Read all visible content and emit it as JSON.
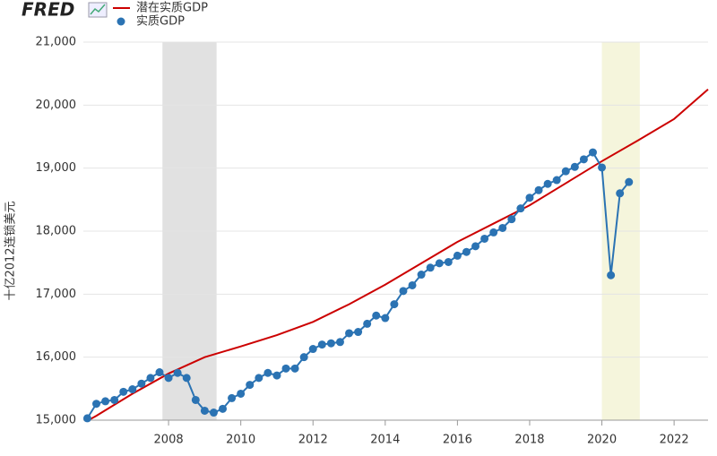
{
  "logo": "FRED",
  "chart_data": {
    "type": "line",
    "y_label": "十亿2012连锁美元",
    "xlim": [
      2005.64,
      2022.94
    ],
    "xticks": [
      2008,
      2010,
      2012,
      2014,
      2016,
      2018,
      2020,
      2022
    ],
    "ylim": [
      15000,
      21000
    ],
    "yticks": [
      {
        "value": 15000,
        "label": "15,000"
      },
      {
        "value": 16000,
        "label": "16,000"
      },
      {
        "value": 17000,
        "label": "17,000"
      },
      {
        "value": 18000,
        "label": "18,000"
      },
      {
        "value": 19000,
        "label": "19,000"
      },
      {
        "value": 20000,
        "label": "20,000"
      },
      {
        "value": 21000,
        "label": "21,000"
      }
    ],
    "grid": true,
    "shaded_ranges": [
      {
        "range": [
          2007.83,
          2009.33
        ],
        "color": "#e1e1e1"
      },
      {
        "range": [
          2020.0,
          2021.05
        ],
        "color": "#f5f5dc"
      }
    ],
    "series": [
      {
        "name": "潜在实质GDP",
        "color": "#cc0000",
        "markers": false,
        "x": [
          2005.75,
          2006,
          2007,
          2008,
          2009,
          2010,
          2011,
          2012,
          2013,
          2014,
          2015,
          2016,
          2017,
          2018,
          2019,
          2020,
          2021,
          2022,
          2022.94
        ],
        "values": [
          14990,
          15070,
          15420,
          15740,
          16000,
          16170,
          16350,
          16560,
          16840,
          17150,
          17490,
          17830,
          18120,
          18410,
          18760,
          19110,
          19440,
          19780,
          20250
        ]
      },
      {
        "name": "实质GDP",
        "color": "#2b73b3",
        "markers": true,
        "x": [
          2005.75,
          2006,
          2006.25,
          2006.5,
          2006.75,
          2007,
          2007.25,
          2007.5,
          2007.75,
          2008,
          2008.25,
          2008.5,
          2008.75,
          2009,
          2009.25,
          2009.5,
          2009.75,
          2010,
          2010.25,
          2010.5,
          2010.75,
          2011,
          2011.25,
          2011.5,
          2011.75,
          2012,
          2012.25,
          2012.5,
          2012.75,
          2013,
          2013.25,
          2013.5,
          2013.75,
          2014,
          2014.25,
          2014.5,
          2014.75,
          2015,
          2015.25,
          2015.5,
          2015.75,
          2016,
          2016.25,
          2016.5,
          2016.75,
          2017,
          2017.25,
          2017.5,
          2017.75,
          2018,
          2018.25,
          2018.5,
          2018.75,
          2019,
          2019.25,
          2019.5,
          2019.75,
          2020,
          2020.25,
          2020.5,
          2020.75
        ],
        "values": [
          15030,
          15260,
          15300,
          15320,
          15450,
          15490,
          15580,
          15670,
          15760,
          15670,
          15750,
          15670,
          15320,
          15150,
          15120,
          15180,
          15350,
          15420,
          15560,
          15670,
          15750,
          15710,
          15820,
          15820,
          16000,
          16130,
          16200,
          16220,
          16240,
          16380,
          16400,
          16530,
          16660,
          16620,
          16840,
          17050,
          17140,
          17310,
          17420,
          17490,
          17510,
          17610,
          17670,
          17760,
          17880,
          17980,
          18050,
          18190,
          18360,
          18530,
          18650,
          18750,
          18810,
          18950,
          19020,
          19140,
          19250,
          19010,
          17300,
          18600,
          18780
        ]
      }
    ]
  }
}
